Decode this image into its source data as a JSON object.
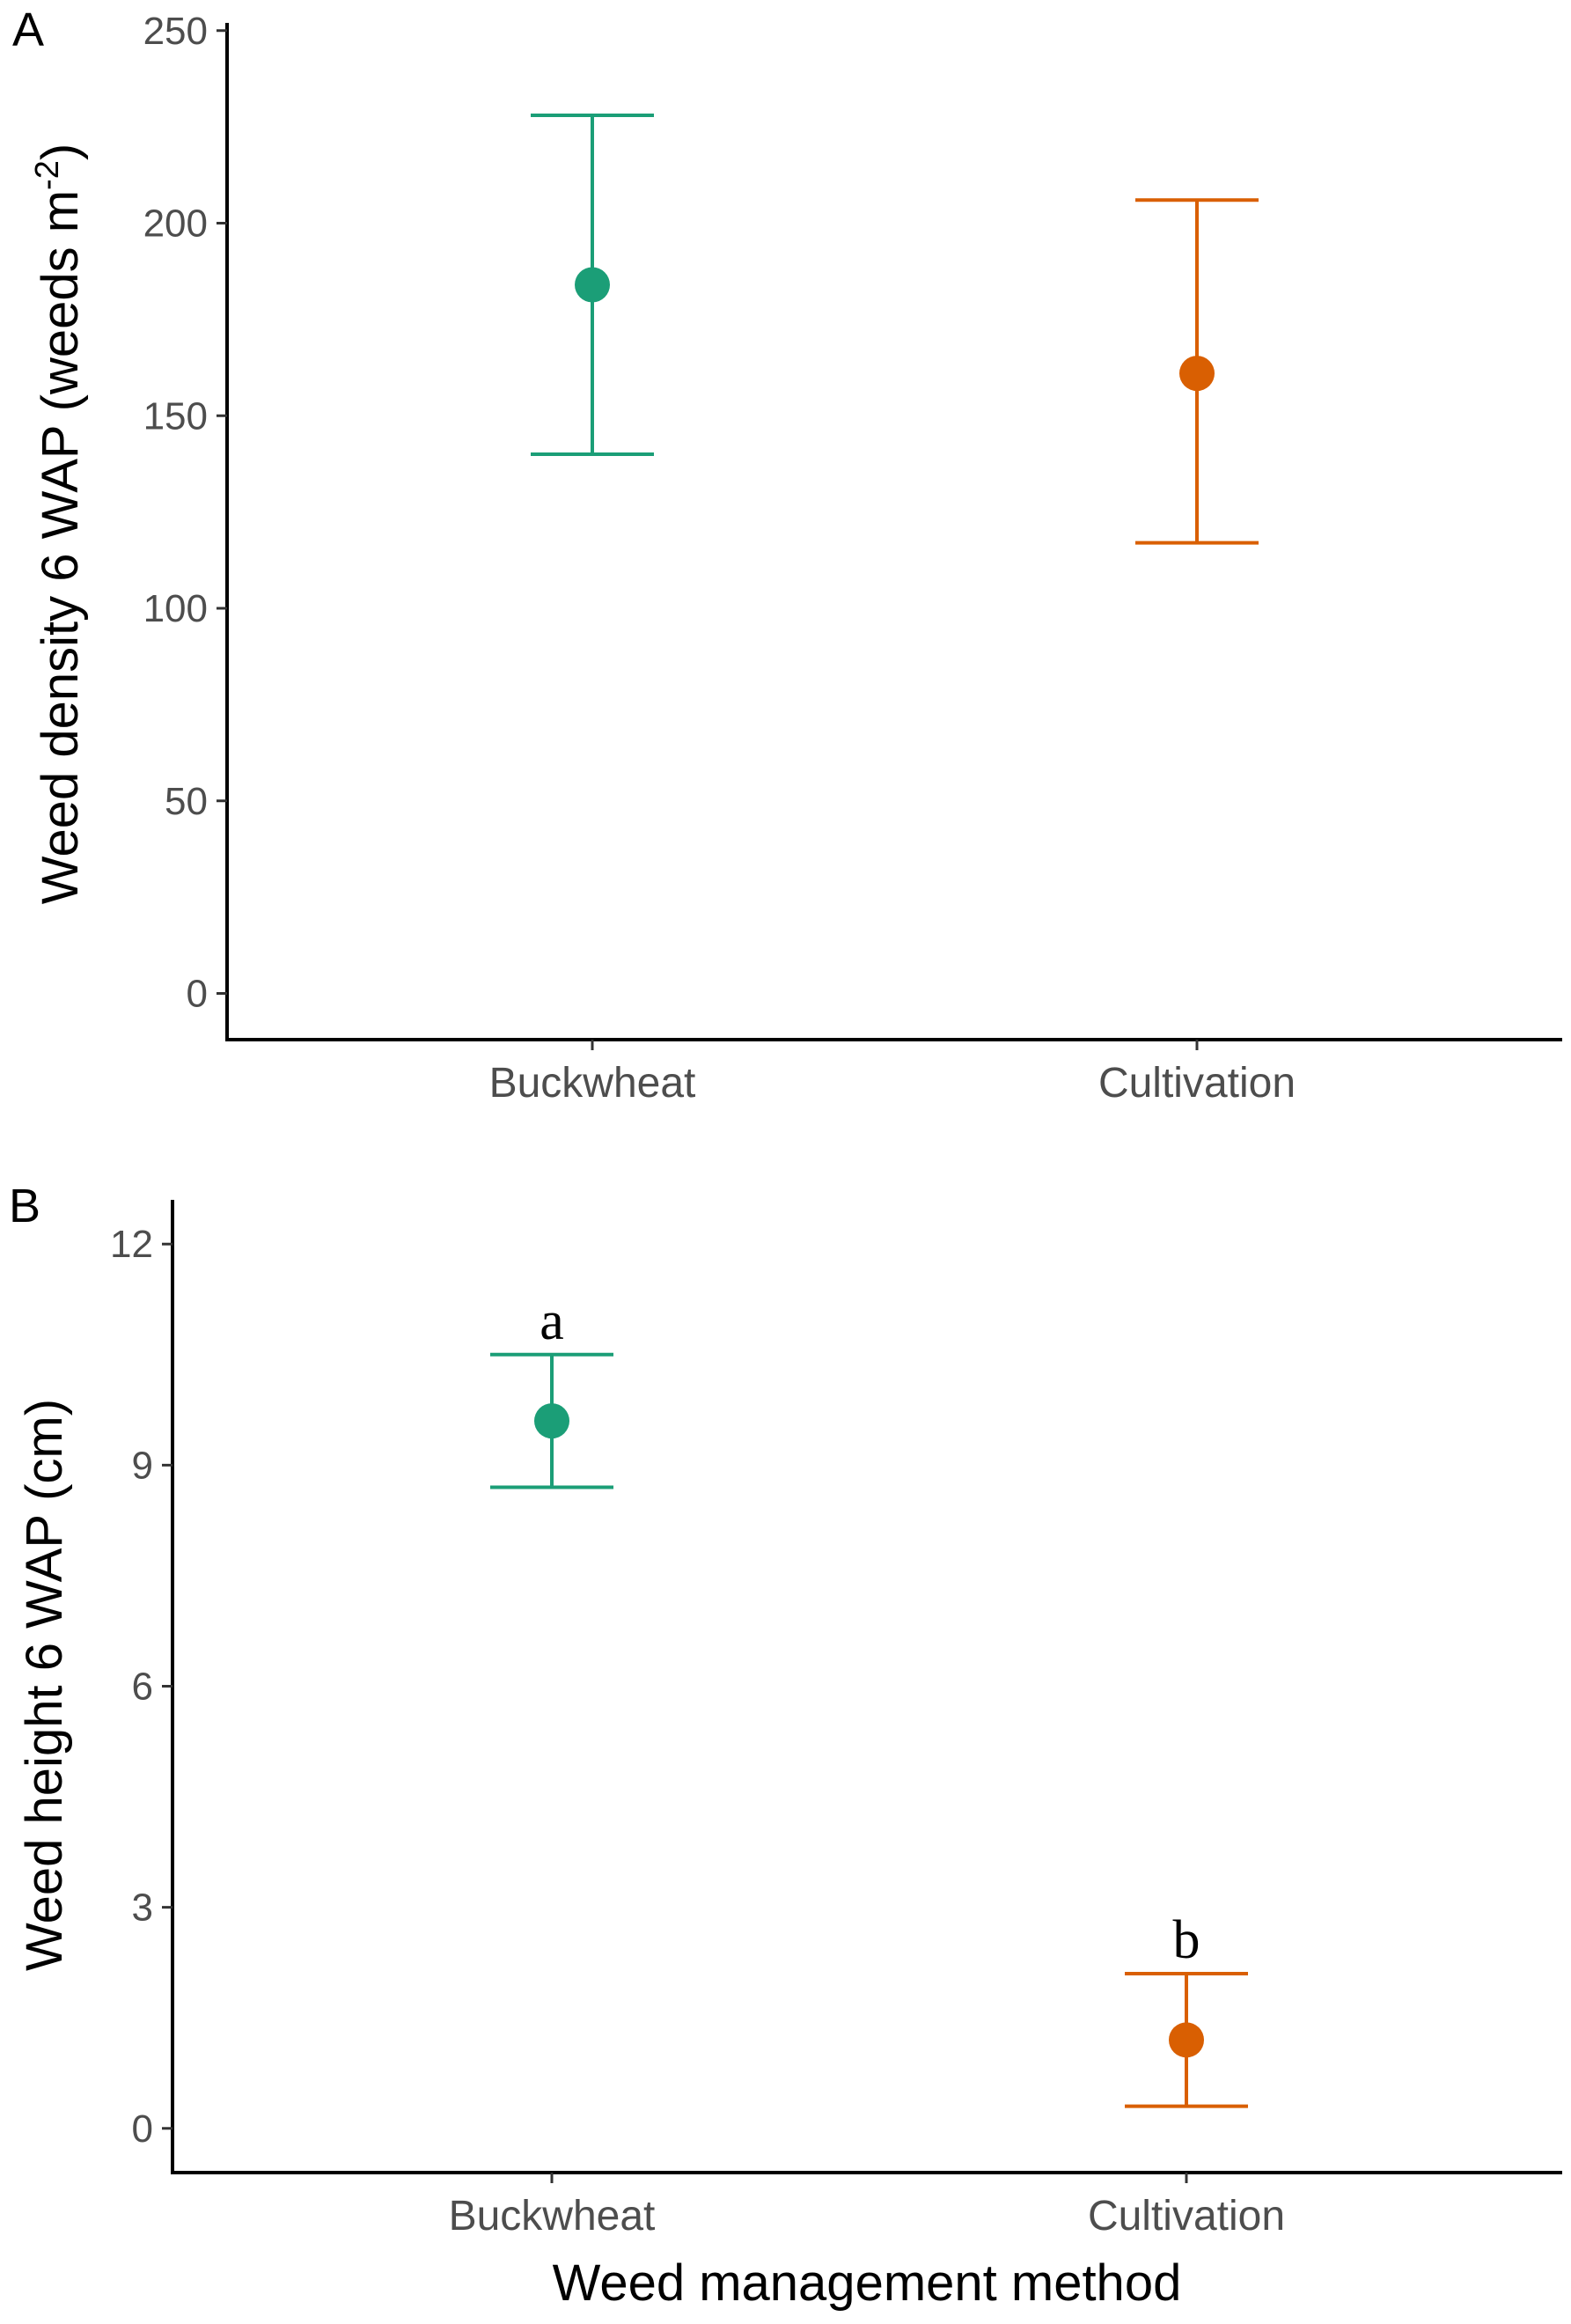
{
  "chart_data": [
    {
      "panel": "A",
      "type": "scatter",
      "categories": [
        "Buckwheat",
        "Cultivation"
      ],
      "series": [
        {
          "values": [
            184,
            161
          ],
          "lower": [
            140,
            117
          ],
          "upper": [
            228,
            206
          ],
          "colors": [
            "#1b9e77",
            "#d95f02"
          ]
        }
      ],
      "ylabel": "Weed density 6 WAP (weeds m",
      "ylabel_sup": "-2",
      "ylabel_close": ")",
      "xlabel": "",
      "ylim": [
        -12,
        252
      ],
      "yticks": [
        "0",
        "50",
        "100",
        "150",
        "200",
        "250"
      ],
      "letters": [
        "",
        ""
      ],
      "grid": false,
      "legend": "none"
    },
    {
      "panel": "B",
      "type": "scatter",
      "categories": [
        "Buckwheat",
        "Cultivation"
      ],
      "series": [
        {
          "values": [
            9.6,
            1.2
          ],
          "lower": [
            8.7,
            0.3
          ],
          "upper": [
            10.5,
            2.1
          ],
          "colors": [
            "#1b9e77",
            "#d95f02"
          ]
        }
      ],
      "ylabel": "Weed height 6 WAP (cm)",
      "xlabel": "Weed management method",
      "ylim": [
        -0.6,
        12.6
      ],
      "yticks": [
        "0",
        "3",
        "6",
        "9",
        "12"
      ],
      "letters": [
        "a",
        "b"
      ],
      "grid": false,
      "legend": "none"
    }
  ]
}
